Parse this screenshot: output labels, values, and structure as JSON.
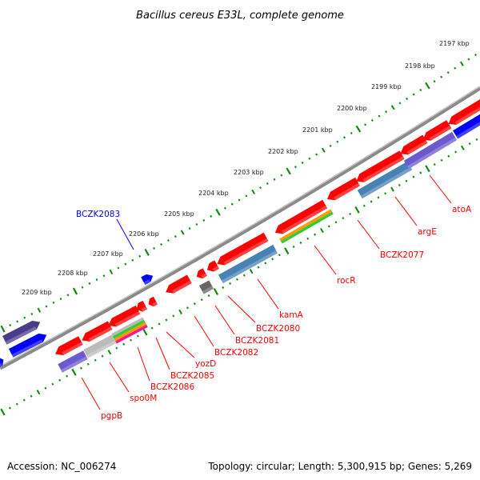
{
  "title": "Bacillus cereus E33L, complete genome",
  "footer": {
    "accession": "Accession: NC_006274",
    "summary": "Topology: circular; Length: 5,300,915 bp; Genes: 5,269"
  },
  "colors": {
    "forward": "#ff0000",
    "backbone": "#888888",
    "ticks": "#118811",
    "reverse_label": "#0000ff"
  },
  "kbp_labels": [
    "2197 kbp",
    "2198 kbp",
    "2199 kbp",
    "2200 kbp",
    "2201 kbp",
    "2202 kbp",
    "2203 kbp",
    "2204 kbp",
    "2205 kbp",
    "2206 kbp",
    "2207 kbp",
    "2208 kbp",
    "2209 kbp"
  ],
  "gene_labels": [
    "pgpB",
    "spo0M",
    "BCZK2086",
    "BCZK2085",
    "yozD",
    "BCZK2082",
    "BCZK2081",
    "BCZK2080",
    "kamA",
    "rocR",
    "BCZK2077",
    "argE",
    "atoA"
  ],
  "reverse_labels": [
    "BCZK2083"
  ]
}
